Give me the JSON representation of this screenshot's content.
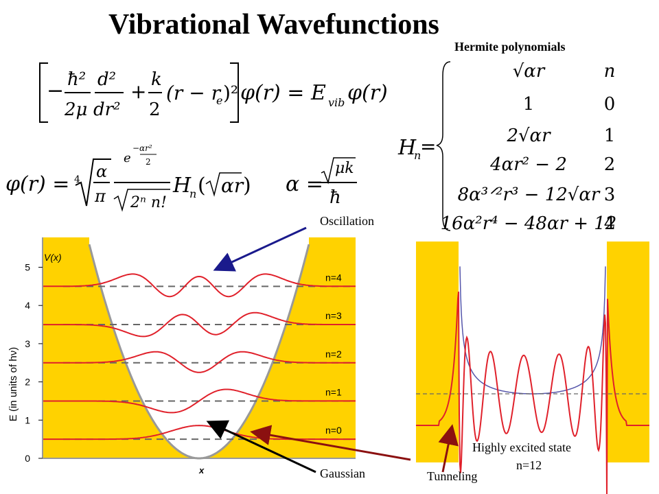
{
  "title": "Vibrational Wavefunctions",
  "hermite": {
    "title": "Hermite polynomials",
    "lhs": "H",
    "lhs_sub": "n",
    "column_header": "n",
    "rows": [
      {
        "expr": "√αr",
        "n": "n"
      },
      {
        "expr": "1",
        "n": "0"
      },
      {
        "expr": "2√αr",
        "n": "1"
      },
      {
        "expr": "4αr² − 2",
        "n": "2"
      },
      {
        "expr": "8α³ᐟ²r³ − 12√αr",
        "n": "3"
      },
      {
        "expr": "16α²r⁴ − 48αr + 12",
        "n": "4"
      }
    ]
  },
  "equations": {
    "schrodinger": "[ −(ħ²/2μ) d²/dr² + (k/2)(r − rₑ)² ] φ(r) = E_vib φ(r)",
    "wavefunction": "φ(r) = ⁴√(α/π) · e^(−αr²/2) / √(2ⁿ n!) · Hₙ(√α r)",
    "alpha": "α = √(μk) / ħ"
  },
  "annotations": {
    "oscillation": "Oscillation",
    "gaussian": "Gaussian",
    "tunneling": "Tunneling",
    "excited": "Highly excited state",
    "excited_n": "n=12"
  },
  "left_plot": {
    "ylabel": "E (in units of hν)",
    "xlabel": "x",
    "vlabel": "V(x)",
    "yticks": [
      "0",
      "1",
      "2",
      "3",
      "4",
      "5"
    ],
    "levels": [
      "n=0",
      "n=1",
      "n=2",
      "n=3",
      "n=4"
    ],
    "level_energies": [
      0.5,
      1.5,
      2.5,
      3.5,
      4.5
    ],
    "colors": {
      "well": "#ffd200",
      "wave": "#e0202a",
      "dash": "#666666",
      "frame": "#999999"
    }
  },
  "right_plot": {
    "colors": {
      "fill": "#ffd200",
      "wave": "#e0202a",
      "potential": "#5555aa"
    }
  }
}
